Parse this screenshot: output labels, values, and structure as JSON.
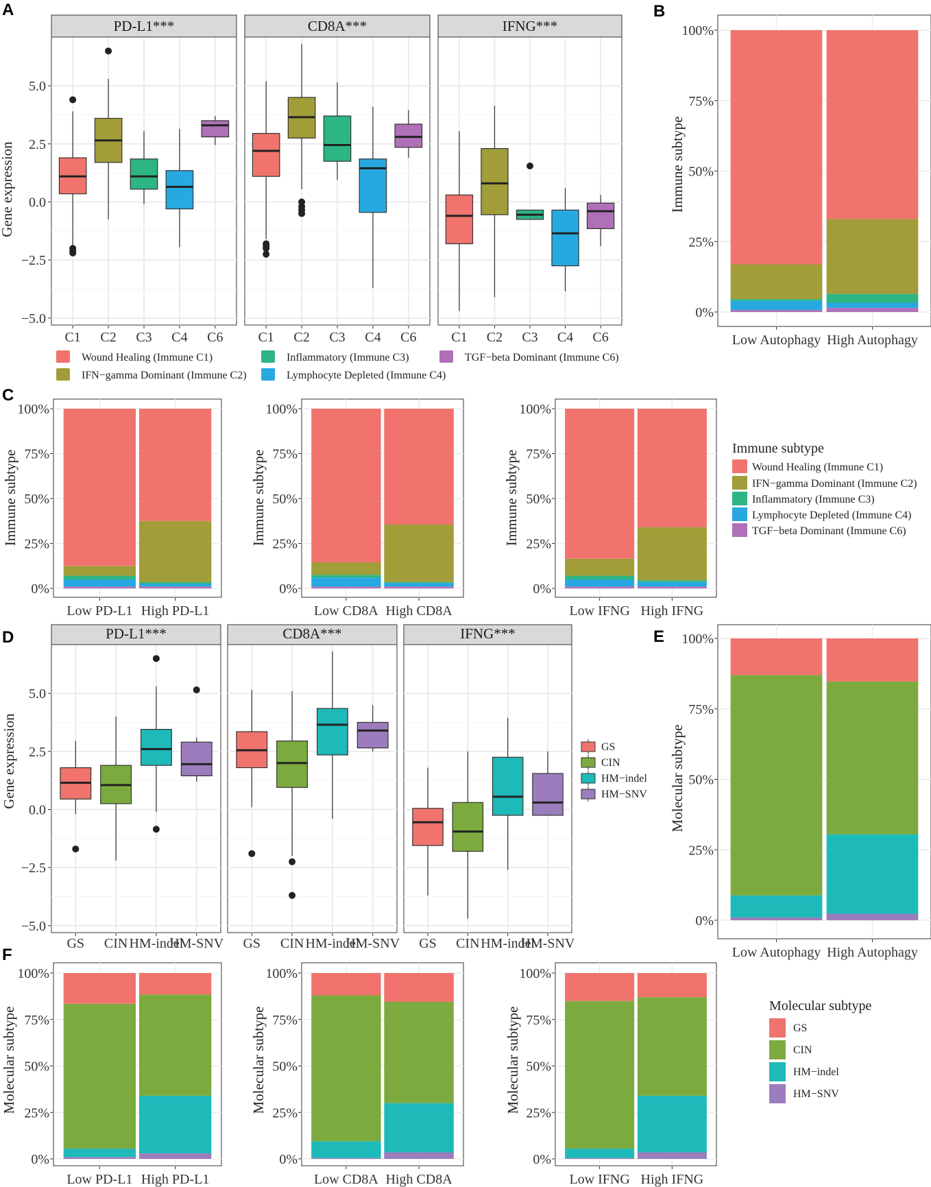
{
  "panel_labels": {
    "A": "A",
    "B": "B",
    "C": "C",
    "D": "D",
    "E": "E",
    "F": "F"
  },
  "gene_expression_label": "Gene expression",
  "immune_subtype_label": "Immune subtype",
  "molecular_subtype_label": "Molecular subtype",
  "colors": {
    "C1": "#F0746D",
    "C2": "#A19D38",
    "C3": "#2DB584",
    "C4": "#27A8E0",
    "C6": "#B070B8",
    "GS": "#F0746D",
    "CIN": "#7CAA3F",
    "HM-indel": "#1EBAB9",
    "HM-SNV": "#9B7DBD"
  },
  "immune_legend": {
    "items": [
      {
        "key": "C1",
        "label": "Wound Healing (Immune C1)"
      },
      {
        "key": "C2",
        "label": "IFN−gamma Dominant (Immune C2)"
      },
      {
        "key": "C3",
        "label": "Inflammatory (Immune C3)"
      },
      {
        "key": "C4",
        "label": "Lymphocyte Depleted (Immune C4)"
      },
      {
        "key": "C6",
        "label": "TGF−beta Dominant (Immune C6)"
      }
    ]
  },
  "molecular_legend": {
    "title": "Molecular subtype",
    "items": [
      {
        "key": "GS",
        "label": "GS"
      },
      {
        "key": "CIN",
        "label": "CIN"
      },
      {
        "key": "HM-indel",
        "label": "HM−indel"
      },
      {
        "key": "HM-SNV",
        "label": "HM−SNV"
      }
    ]
  },
  "chart_data": [
    {
      "id": "A",
      "type": "boxplot",
      "ylabel": "Gene expression",
      "ylim": [
        -5.3,
        7.1
      ],
      "yticks": [
        -5.0,
        -2.5,
        0.0,
        2.5,
        5.0
      ],
      "ytick_labels": [
        "−5.0",
        "−2.5",
        "0.0",
        "2.5",
        "5.0"
      ],
      "categories": [
        "C1",
        "C2",
        "C3",
        "C4",
        "C6"
      ],
      "facets": [
        {
          "title": "PD-L1***",
          "boxes": [
            {
              "cat": "C1",
              "min": -1.95,
              "q1": 0.35,
              "med": 1.1,
              "q3": 1.9,
              "max": 3.9,
              "outliers": [
                4.4,
                -2.0,
                -2.1,
                -2.2
              ]
            },
            {
              "cat": "C2",
              "min": -0.75,
              "q1": 1.7,
              "med": 2.65,
              "q3": 3.6,
              "max": 5.3,
              "outliers": [
                6.5
              ]
            },
            {
              "cat": "C3",
              "min": -0.1,
              "q1": 0.55,
              "med": 1.1,
              "q3": 1.85,
              "max": 3.05,
              "outliers": []
            },
            {
              "cat": "C4",
              "min": -1.95,
              "q1": -0.3,
              "med": 0.65,
              "q3": 1.35,
              "max": 3.15,
              "outliers": []
            },
            {
              "cat": "C6",
              "min": 2.45,
              "q1": 2.8,
              "med": 3.3,
              "q3": 3.5,
              "max": 3.7,
              "outliers": []
            }
          ]
        },
        {
          "title": "CD8A***",
          "boxes": [
            {
              "cat": "C1",
              "min": -1.6,
              "q1": 1.1,
              "med": 2.2,
              "q3": 2.95,
              "max": 5.2,
              "outliers": [
                -1.8,
                -1.9,
                -2.0,
                -2.25
              ]
            },
            {
              "cat": "C2",
              "min": 0.55,
              "q1": 2.75,
              "med": 3.65,
              "q3": 4.5,
              "max": 6.8,
              "outliers": [
                0.0,
                -0.2,
                -0.35,
                -0.5
              ]
            },
            {
              "cat": "C3",
              "min": 0.95,
              "q1": 1.75,
              "med": 2.45,
              "q3": 3.7,
              "max": 5.15,
              "outliers": []
            },
            {
              "cat": "C4",
              "min": -3.7,
              "q1": -0.45,
              "med": 1.45,
              "q3": 1.85,
              "max": 4.1,
              "outliers": []
            },
            {
              "cat": "C6",
              "min": 1.9,
              "q1": 2.35,
              "med": 2.8,
              "q3": 3.35,
              "max": 3.95,
              "outliers": []
            }
          ]
        },
        {
          "title": "IFNG***",
          "boxes": [
            {
              "cat": "C1",
              "min": -4.7,
              "q1": -1.8,
              "med": -0.6,
              "q3": 0.3,
              "max": 3.05,
              "outliers": []
            },
            {
              "cat": "C2",
              "min": -4.1,
              "q1": -0.55,
              "med": 0.8,
              "q3": 2.3,
              "max": 4.15,
              "outliers": []
            },
            {
              "cat": "C3",
              "min": -0.75,
              "q1": -0.75,
              "med": -0.55,
              "q3": -0.35,
              "max": -0.35,
              "outliers": [
                1.55
              ]
            },
            {
              "cat": "C4",
              "min": -3.85,
              "q1": -2.75,
              "med": -1.35,
              "q3": -0.35,
              "max": 0.6,
              "outliers": []
            },
            {
              "cat": "C6",
              "min": -1.9,
              "q1": -1.15,
              "med": -0.4,
              "q3": -0.05,
              "max": 0.3,
              "outliers": []
            }
          ]
        }
      ]
    },
    {
      "id": "B",
      "type": "stacked_bar_percent",
      "ylabel": "Immune subtype",
      "categories": [
        "Low Autophagy",
        "High Autophagy"
      ],
      "stack_order": [
        "C6",
        "C4",
        "C3",
        "C2",
        "C1"
      ],
      "stacks": [
        {
          "C6": 0.7,
          "C4": 3.3,
          "C3": 0.6,
          "C2": 12.3,
          "C1": 83.1
        },
        {
          "C6": 1.5,
          "C4": 1.8,
          "C3": 3.1,
          "C2": 26.6,
          "C1": 67.0
        }
      ]
    },
    {
      "id": "C",
      "type": "stacked_bar_percent",
      "ylabel": "Immune subtype",
      "legend_title": "Immune subtype",
      "stack_order": [
        "C6",
        "C4",
        "C3",
        "C2",
        "C1"
      ],
      "panels": [
        {
          "categories": [
            "Low PD-L1",
            "High PD-L1"
          ],
          "stacks": [
            {
              "C6": 1.0,
              "C4": 4.0,
              "C3": 2.0,
              "C2": 5.5,
              "C1": 87.5
            },
            {
              "C6": 1.0,
              "C4": 1.5,
              "C3": 1.0,
              "C2": 34.0,
              "C1": 62.5
            }
          ]
        },
        {
          "categories": [
            "Low CD8A",
            "High CD8A"
          ],
          "stacks": [
            {
              "C6": 1.0,
              "C4": 5.0,
              "C3": 1.5,
              "C2": 7.0,
              "C1": 85.5
            },
            {
              "C6": 1.0,
              "C4": 2.0,
              "C3": 0.5,
              "C2": 32.0,
              "C1": 64.5
            }
          ]
        },
        {
          "categories": [
            "Low IFNG",
            "High IFNG"
          ],
          "stacks": [
            {
              "C6": 1.0,
              "C4": 4.0,
              "C3": 2.0,
              "C2": 9.5,
              "C1": 83.5
            },
            {
              "C6": 1.0,
              "C4": 2.5,
              "C3": 1.0,
              "C2": 29.5,
              "C1": 66.0
            }
          ]
        }
      ]
    },
    {
      "id": "D",
      "type": "boxplot",
      "ylabel": "Gene expression",
      "ylim": [
        -5.3,
        7.1
      ],
      "yticks": [
        -5.0,
        -2.5,
        0.0,
        2.5,
        5.0
      ],
      "ytick_labels": [
        "−5.0",
        "−2.5",
        "0.0",
        "2.5",
        "5.0"
      ],
      "categories": [
        "GS",
        "CIN",
        "HM-indel",
        "HM-SNV"
      ],
      "facets": [
        {
          "title": "PD-L1***",
          "boxes": [
            {
              "cat": "GS",
              "min": -0.2,
              "q1": 0.45,
              "med": 1.15,
              "q3": 1.8,
              "max": 2.95,
              "outliers": [
                -1.7
              ]
            },
            {
              "cat": "CIN",
              "min": -2.2,
              "q1": 0.25,
              "med": 1.05,
              "q3": 1.9,
              "max": 4.0,
              "outliers": []
            },
            {
              "cat": "HM-indel",
              "min": -0.1,
              "q1": 1.9,
              "med": 2.6,
              "q3": 3.45,
              "max": 5.3,
              "outliers": [
                6.5,
                -0.85
              ]
            },
            {
              "cat": "HM-SNV",
              "min": 1.2,
              "q1": 1.45,
              "med": 1.95,
              "q3": 2.9,
              "max": 3.1,
              "outliers": [
                5.15
              ]
            }
          ]
        },
        {
          "title": "CD8A***",
          "boxes": [
            {
              "cat": "GS",
              "min": 0.1,
              "q1": 1.8,
              "med": 2.55,
              "q3": 3.35,
              "max": 5.15,
              "outliers": [
                -1.9
              ]
            },
            {
              "cat": "CIN",
              "min": -2.0,
              "q1": 0.95,
              "med": 2.0,
              "q3": 2.95,
              "max": 5.1,
              "outliers": [
                -2.25,
                -3.7
              ]
            },
            {
              "cat": "HM-indel",
              "min": -0.4,
              "q1": 2.35,
              "med": 3.65,
              "q3": 4.35,
              "max": 6.8,
              "outliers": []
            },
            {
              "cat": "HM-SNV",
              "min": 2.5,
              "q1": 2.65,
              "med": 3.4,
              "q3": 3.75,
              "max": 4.5,
              "outliers": []
            }
          ]
        },
        {
          "title": "IFNG***",
          "boxes": [
            {
              "cat": "GS",
              "min": -3.7,
              "q1": -1.55,
              "med": -0.55,
              "q3": 0.05,
              "max": 1.8,
              "outliers": []
            },
            {
              "cat": "CIN",
              "min": -4.7,
              "q1": -1.8,
              "med": -0.95,
              "q3": 0.3,
              "max": 2.5,
              "outliers": []
            },
            {
              "cat": "HM-indel",
              "min": -2.6,
              "q1": -0.25,
              "med": 0.55,
              "q3": 2.25,
              "max": 3.95,
              "outliers": []
            },
            {
              "cat": "HM-SNV",
              "min": -0.25,
              "q1": -0.25,
              "med": 0.3,
              "q3": 1.55,
              "max": 2.5,
              "outliers": []
            }
          ]
        }
      ]
    },
    {
      "id": "E",
      "type": "stacked_bar_percent",
      "ylabel": "Molecular subtype",
      "categories": [
        "Low Autophagy",
        "High Autophagy"
      ],
      "stack_order": [
        "HM-SNV",
        "HM-indel",
        "CIN",
        "GS"
      ],
      "stacks": [
        {
          "HM-SNV": 1.0,
          "HM-indel": 7.8,
          "CIN": 78.2,
          "GS": 13.0
        },
        {
          "HM-SNV": 2.3,
          "HM-indel": 28.2,
          "CIN": 54.2,
          "GS": 15.3
        }
      ]
    },
    {
      "id": "F",
      "type": "stacked_bar_percent",
      "ylabel": "Molecular subtype",
      "stack_order": [
        "HM-SNV",
        "HM-indel",
        "CIN",
        "GS"
      ],
      "panels": [
        {
          "categories": [
            "Low PD-L1",
            "High PD-L1"
          ],
          "stacks": [
            {
              "HM-SNV": 1.0,
              "HM-indel": 4.5,
              "CIN": 78.0,
              "GS": 16.5
            },
            {
              "HM-SNV": 3.0,
              "HM-indel": 31.0,
              "CIN": 54.5,
              "GS": 11.5
            }
          ]
        },
        {
          "categories": [
            "Low CD8A",
            "High CD8A"
          ],
          "stacks": [
            {
              "HM-SNV": 0.5,
              "HM-indel": 9.0,
              "CIN": 78.5,
              "GS": 12.0
            },
            {
              "HM-SNV": 3.5,
              "HM-indel": 26.5,
              "CIN": 54.5,
              "GS": 15.5
            }
          ]
        },
        {
          "categories": [
            "Low IFNG",
            "High IFNG"
          ],
          "stacks": [
            {
              "HM-SNV": 0.5,
              "HM-indel": 5.0,
              "CIN": 79.5,
              "GS": 15.0
            },
            {
              "HM-SNV": 3.5,
              "HM-indel": 30.5,
              "CIN": 53.0,
              "GS": 13.0
            }
          ]
        }
      ]
    }
  ]
}
